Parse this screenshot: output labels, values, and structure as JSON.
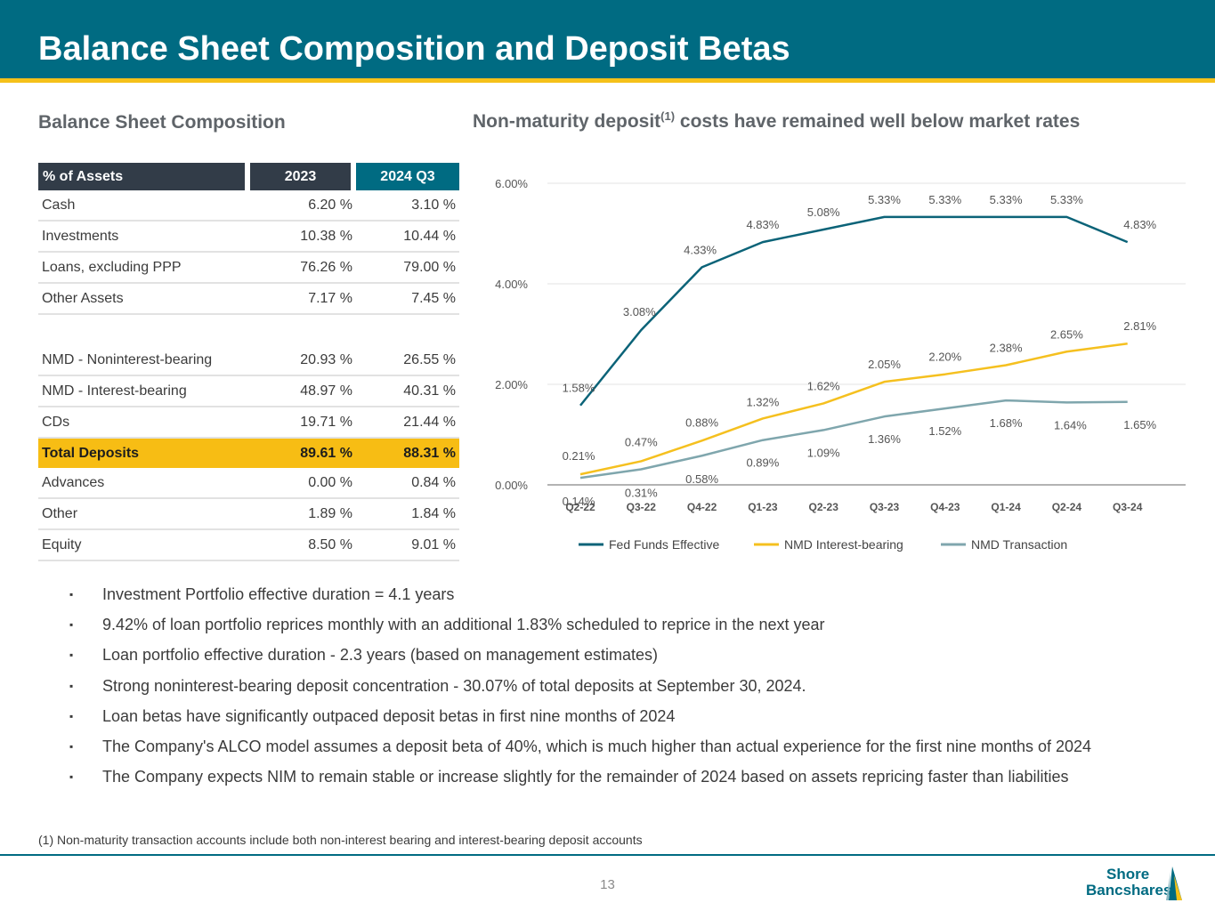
{
  "header": {
    "title": "Balance Sheet Composition and Deposit Betas"
  },
  "left": {
    "title": "Balance Sheet Composition",
    "table": {
      "headers": [
        "% of Assets",
        "2023",
        "2024 Q3"
      ],
      "rows": [
        [
          "Cash",
          "6.20 %",
          "3.10 %"
        ],
        [
          "Investments",
          "10.38 %",
          "10.44 %"
        ],
        [
          "Loans, excluding PPP",
          "76.26 %",
          "79.00 %"
        ],
        [
          "Other Assets",
          "7.17 %",
          "7.45 %"
        ],
        [
          "NMD - Noninterest-bearing",
          "20.93 %",
          "26.55 %"
        ],
        [
          "NMD - Interest-bearing",
          "48.97 %",
          "40.31 %"
        ],
        [
          "CDs",
          "19.71 %",
          "21.44 %"
        ],
        [
          "Total Deposits",
          "89.61 %",
          "88.31 %"
        ],
        [
          "Advances",
          "0.00 %",
          "0.84 %"
        ],
        [
          "Other",
          "1.89 %",
          "1.84 %"
        ],
        [
          "Equity",
          "8.50 %",
          "9.01 %"
        ]
      ]
    }
  },
  "right": {
    "title_main": "Non-maturity deposit",
    "title_sup": "(1)",
    "title_rest": " costs have remained well below market rates"
  },
  "chart_data": {
    "type": "line",
    "title": "Non-maturity deposit(1) costs have remained well below market rates",
    "categories": [
      "Q2-22",
      "Q3-22",
      "Q4-22",
      "Q1-23",
      "Q2-23",
      "Q3-23",
      "Q4-23",
      "Q1-24",
      "Q2-24",
      "Q3-24"
    ],
    "ylim": [
      0,
      6
    ],
    "yticks": [
      "0.00%",
      "2.00%",
      "4.00%",
      "6.00%"
    ],
    "grid": true,
    "legend_position": "bottom",
    "series": [
      {
        "name": "Fed Funds Effective",
        "color": "#0b6378",
        "values": [
          1.58,
          3.08,
          4.33,
          4.83,
          5.08,
          5.33,
          5.33,
          5.33,
          5.33,
          4.83
        ],
        "labels": [
          "1.58%",
          "3.08%",
          "4.33%",
          "4.83%",
          "5.08%",
          "5.33%",
          "5.33%",
          "5.33%",
          "5.33%",
          "4.83%"
        ]
      },
      {
        "name": "NMD Interest-bearing",
        "color": "#f5c01f",
        "values": [
          0.21,
          0.47,
          0.88,
          1.32,
          1.62,
          2.05,
          2.2,
          2.38,
          2.65,
          2.81
        ],
        "labels": [
          "0.21%",
          "0.47%",
          "0.88%",
          "1.32%",
          "1.62%",
          "2.05%",
          "2.20%",
          "2.38%",
          "2.65%",
          "2.81%"
        ]
      },
      {
        "name": "NMD Transaction",
        "color": "#7fa6ad",
        "values": [
          0.14,
          0.31,
          0.58,
          0.89,
          1.09,
          1.36,
          1.52,
          1.68,
          1.64,
          1.65
        ],
        "labels": [
          "0.14%",
          "0.31%",
          "0.58%",
          "0.89%",
          "1.09%",
          "1.36%",
          "1.52%",
          "1.68%",
          "1.64%",
          "1.65%"
        ]
      }
    ]
  },
  "bullets": [
    "Investment Portfolio effective duration = 4.1 years",
    "9.42% of loan portfolio reprices monthly with an additional 1.83% scheduled to reprice in the next year",
    "Loan portfolio effective duration - 2.3 years (based on management estimates)",
    "Strong noninterest-bearing deposit concentration - 30.07% of total deposits at September 30, 2024.",
    "Loan betas have significantly outpaced deposit betas in first nine months of 2024",
    "The Company's ALCO model assumes a deposit beta of 40%, which is much higher than actual experience for the first nine months of 2024",
    "The Company expects NIM to remain stable or increase slightly for the remainder of 2024 based on assets repricing faster than liabilities"
  ],
  "bullet_marker": "▪",
  "footnote": "(1) Non-maturity transaction accounts include both non-interest bearing and interest-bearing deposit accounts",
  "footer": {
    "page_number": "13",
    "logo_line1": "Shore",
    "logo_line2": "Bancshares"
  },
  "colors": {
    "header": "#006b82",
    "accent": "#f5c11a",
    "table_head_dark": "#323c48",
    "total_row": "#f7bd14"
  }
}
